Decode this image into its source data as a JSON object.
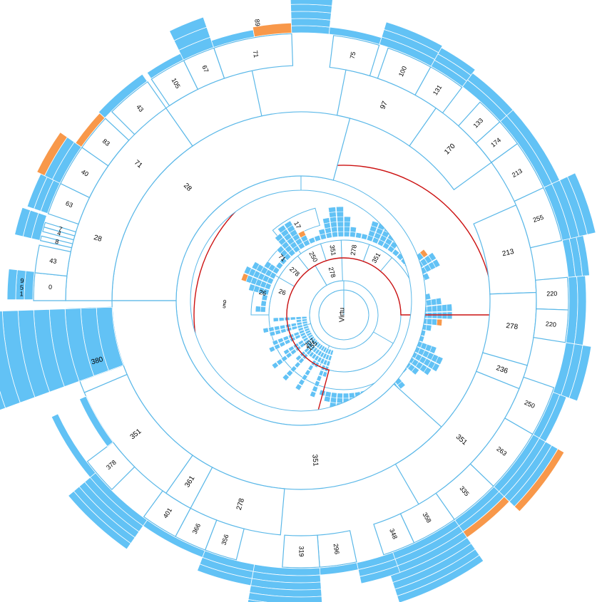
{
  "colors": {
    "stroke": "#5bb8e8",
    "leaf": "#62c2f5",
    "highlight": "#f8984a",
    "selection": "#cc1111",
    "background": "#ffffff"
  },
  "mini": {
    "root_label": "Virtu",
    "level1": [
      {
        "label": "155",
        "start": 120,
        "end": 330
      },
      {
        "label": "278",
        "start": 330,
        "end": 358
      },
      {
        "label": "207",
        "start": 205,
        "end": 255
      }
    ],
    "level2": [
      {
        "label": "26",
        "start": 0,
        "end": 300
      },
      {
        "label": "278",
        "start": 300,
        "end": 322
      },
      {
        "label": "250",
        "start": 322,
        "end": 342
      },
      {
        "label": "351",
        "start": 342,
        "end": 358
      },
      {
        "label": "278",
        "start": 358,
        "end": 380
      },
      {
        "label": "351",
        "start": 380,
        "end": 400
      }
    ],
    "level3": [
      {
        "label": "26",
        "start": 270,
        "end": 300
      },
      {
        "label": "71",
        "start": 300,
        "end": 325
      }
    ],
    "level4": [
      {
        "label": "17",
        "start": 320,
        "end": 345
      }
    ],
    "small_labels": [
      {
        "label": "5",
        "angle": 274
      },
      {
        "label": "9",
        "angle": 276
      }
    ],
    "selection": {
      "start": 195,
      "end": 450
    }
  },
  "ring1": [
    {
      "label": "28",
      "start": 270,
      "end": 375
    },
    {
      "label": "351",
      "start": 132,
      "end": 270
    }
  ],
  "ring2": [
    {
      "label": "28",
      "start": 270,
      "end": 325,
      "label_angle": 287
    },
    {
      "label": "71",
      "start": 325,
      "end": 348,
      "label_angle": 310
    },
    {
      "label": "97",
      "start": 371,
      "end": 395
    },
    {
      "label": "170",
      "start": 395,
      "end": 414
    },
    {
      "label": "213",
      "start": 426,
      "end": 448
    },
    {
      "label": "278",
      "start": 448,
      "end": 466
    },
    {
      "label": "236",
      "start": 466,
      "end": 472
    },
    {
      "label": "351",
      "start": 472,
      "end": 510
    },
    {
      "label": "278",
      "start": 185,
      "end": 208
    },
    {
      "label": "361",
      "start": 208,
      "end": 215
    },
    {
      "label": "351",
      "start": 215,
      "end": 247
    },
    {
      "label": "380",
      "start": 247,
      "end": 260
    },
    {
      "label": "2",
      "start": 250,
      "end": 268
    }
  ],
  "ring3": [
    {
      "label": "0",
      "start": 270,
      "end": 276
    },
    {
      "label": "43",
      "start": 276,
      "end": 282
    },
    {
      "label": "8",
      "start": 283,
      "end": 284
    },
    {
      "label": "4",
      "start": 285,
      "end": 286
    },
    {
      "label": "7",
      "start": 286,
      "end": 287
    },
    {
      "label": "63",
      "start": 289,
      "end": 296
    },
    {
      "label": "40",
      "start": 296,
      "end": 305
    },
    {
      "label": "83",
      "start": 305,
      "end": 313
    },
    {
      "label": "43",
      "start": 315,
      "end": 325
    },
    {
      "label": "105",
      "start": 326,
      "end": 334
    },
    {
      "label": "67",
      "start": 334,
      "end": 341
    },
    {
      "label": "71",
      "start": 341,
      "end": 358
    },
    {
      "label": "75",
      "start": 367,
      "end": 377
    },
    {
      "label": "100",
      "start": 379,
      "end": 389
    },
    {
      "label": "131",
      "start": 389,
      "end": 397
    },
    {
      "label": "133",
      "start": 402,
      "end": 408
    },
    {
      "label": "174",
      "start": 408,
      "end": 414
    },
    {
      "label": "213",
      "start": 414,
      "end": 425
    },
    {
      "label": "255",
      "start": 425,
      "end": 437
    },
    {
      "label": "220",
      "start": 445,
      "end": 452
    },
    {
      "label": "220",
      "start": 452,
      "end": 459
    },
    {
      "label": "250",
      "start": 469,
      "end": 480
    },
    {
      "label": "263",
      "start": 480,
      "end": 494
    },
    {
      "label": "358",
      "start": 505,
      "end": 515
    },
    {
      "label": "348",
      "start": 515,
      "end": 522
    },
    {
      "label": "335",
      "start": 494,
      "end": 505
    },
    {
      "label": "296",
      "start": 168,
      "end": 176
    },
    {
      "label": "319",
      "start": 176,
      "end": 184
    },
    {
      "label": "356",
      "start": 194,
      "end": 201
    },
    {
      "label": "366",
      "start": 201,
      "end": 208
    },
    {
      "label": "401",
      "start": 208,
      "end": 216
    },
    {
      "label": "378",
      "start": 225,
      "end": 233
    }
  ],
  "outer_labels": [
    {
      "label": "1",
      "angle": 271.3
    },
    {
      "label": "5",
      "angle": 272.6
    },
    {
      "label": "9",
      "angle": 274
    },
    {
      "label": "89",
      "angle": 351
    }
  ]
}
